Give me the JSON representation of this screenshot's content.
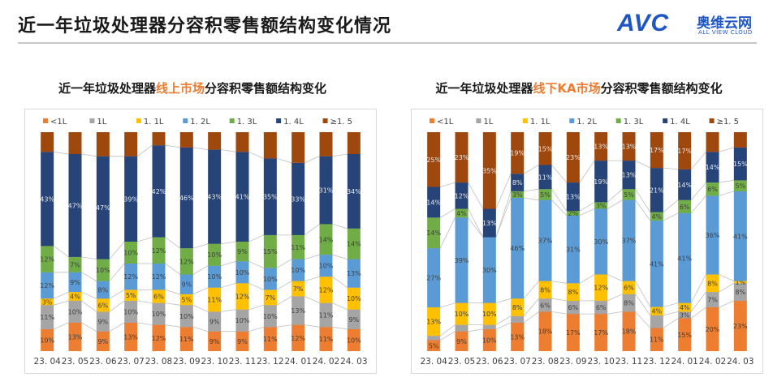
{
  "header": {
    "title": "近一年垃圾处理器分容积零售额结构变化情况",
    "logo_text": "AVC",
    "logo_cn": "奥维云网",
    "logo_en": "ALL VIEW CLOUD"
  },
  "colors": {
    "<1L": "#ed7d31",
    "1L": "#a5a5a5",
    "1.1L": "#ffc000",
    "1.2L": "#5b9bd5",
    "1.3L": "#70ad47",
    "1.4L": "#264478",
    ">=1.5": "#9e480e"
  },
  "chart_data": [
    {
      "type": "bar",
      "stacked": true,
      "title_parts": [
        "近一年垃圾处理器",
        "线上市场",
        "分容积零售额结构变化"
      ],
      "categories": [
        "23. 04",
        "23. 05",
        "23. 06",
        "23. 07",
        "23. 08",
        "23. 09",
        "23. 10",
        "23. 11",
        "23. 12",
        "24. 01",
        "24. 02",
        "24. 03"
      ],
      "legend_position": "top",
      "series": [
        {
          "name": "<1L",
          "values": [
            10,
            13,
            9,
            13,
            12,
            11,
            9,
            9,
            11,
            12,
            11,
            10
          ],
          "labels": [
            "10%",
            "13%",
            "9%",
            "13%",
            "12%",
            "11%",
            "9%",
            "9%",
            "11%",
            "12%",
            "11%",
            "10%"
          ]
        },
        {
          "name": "1L",
          "values": [
            11,
            10,
            9,
            10,
            10,
            10,
            9,
            10,
            10,
            13,
            11,
            9
          ],
          "labels": [
            "11%",
            "10%",
            "9%",
            "10%",
            "10%",
            "10%",
            "9%",
            "10%",
            "10%",
            "13%",
            "11%",
            "9%"
          ]
        },
        {
          "name": "1.1L",
          "values": [
            3,
            4,
            6,
            5,
            6,
            5,
            11,
            12,
            7,
            7,
            12,
            10
          ],
          "labels": [
            "3%",
            "4%",
            "6%",
            "5%",
            "6%",
            "5%",
            "11%",
            "12%",
            "7%",
            "7%",
            "12%",
            "10%"
          ]
        },
        {
          "name": "1.2L",
          "values": [
            12,
            9,
            8,
            12,
            12,
            9,
            10,
            10,
            10,
            10,
            10,
            13
          ],
          "labels": [
            "12%",
            "9%",
            "8%",
            "12%",
            "12%",
            "9%",
            "10%",
            "10%",
            "10%",
            "10%",
            "10%",
            "13%"
          ]
        },
        {
          "name": "1.3L",
          "values": [
            12,
            7,
            10,
            10,
            12,
            12,
            10,
            9,
            15,
            11,
            14,
            14
          ],
          "labels": [
            "12%",
            "7%",
            "10%",
            "10%",
            "12%",
            "12%",
            "10%",
            "9%",
            "15%",
            "11%",
            "14%",
            "14%"
          ]
        },
        {
          "name": "1.4L",
          "values": [
            43,
            47,
            47,
            39,
            42,
            46,
            43,
            41,
            35,
            33,
            31,
            34
          ],
          "labels": [
            "43%",
            "47%",
            "47%",
            "39%",
            "42%",
            "46%",
            "43%",
            "41%",
            "35%",
            "33%",
            "31%",
            "34%"
          ]
        },
        {
          "name": ">=1.5",
          "values": [
            9,
            10,
            11,
            11,
            6,
            7,
            8,
            9,
            12,
            14,
            11,
            10
          ],
          "labels": [
            "",
            "",
            "",
            "",
            "",
            "",
            "",
            "",
            "",
            "",
            "",
            ""
          ]
        }
      ],
      "legend_labels": [
        "<1L",
        "1L",
        "1. 1L",
        "1. 2L",
        "1. 3L",
        "1. 4L",
        "≥1. 5"
      ],
      "ylim": [
        0,
        100
      ]
    },
    {
      "type": "bar",
      "stacked": true,
      "title_parts": [
        "近一年垃圾处理器",
        "线下KA市场",
        "分容积零售额结构变化"
      ],
      "categories": [
        "23. 04",
        "23. 05",
        "23. 06",
        "23. 07",
        "23. 08",
        "23. 09",
        "23. 10",
        "23. 11",
        "23. 12",
        "24. 01",
        "24. 02",
        "24. 03"
      ],
      "legend_position": "top",
      "series": [
        {
          "name": "<1L",
          "values": [
            5,
            9,
            10,
            13,
            18,
            17,
            17,
            18,
            11,
            15,
            20,
            23
          ],
          "labels": [
            "5%",
            "9%",
            "10%",
            "13%",
            "18%",
            "17%",
            "17%",
            "18%",
            "11%",
            "15%",
            "20%",
            "23%"
          ]
        },
        {
          "name": "1L",
          "values": [
            2,
            3,
            2,
            3,
            6,
            6,
            6,
            8,
            6,
            3,
            7,
            8
          ],
          "labels": [
            "",
            "",
            "",
            "",
            "6%",
            "6%",
            "6%",
            "8%",
            "",
            "3%",
            "7%",
            "8%"
          ]
        },
        {
          "name": "1.1L",
          "values": [
            13,
            10,
            10,
            8,
            8,
            8,
            12,
            6,
            4,
            4,
            8,
            1
          ],
          "labels": [
            "13%",
            "10%",
            "10%",
            "8%",
            "8%",
            "8%",
            "12%",
            "6%",
            "4%",
            "4%",
            "8%",
            "1%"
          ]
        },
        {
          "name": "1.2L",
          "values": [
            27,
            39,
            30,
            46,
            37,
            31,
            30,
            37,
            41,
            41,
            36,
            41
          ],
          "labels": [
            "27%",
            "39%",
            "30%",
            "46%",
            "37%",
            "31%",
            "30%",
            "37%",
            "41%",
            "41%",
            "36%",
            "41%"
          ]
        },
        {
          "name": "1.3L",
          "values": [
            14,
            4,
            0,
            3,
            5,
            2,
            3,
            5,
            4,
            6,
            6,
            5
          ],
          "labels": [
            "14%",
            "4%",
            "",
            "3%",
            "5%",
            "2%",
            "3%",
            "5%",
            "4%",
            "6%",
            "6%",
            "5%"
          ]
        },
        {
          "name": "1.4L",
          "values": [
            14,
            12,
            13,
            8,
            11,
            13,
            19,
            13,
            21,
            14,
            14,
            15
          ],
          "labels": [
            "14%",
            "12%",
            "13%",
            "8%",
            "11%",
            "13%",
            "19%",
            "13%",
            "21%",
            "14%",
            "14%",
            "15%"
          ]
        },
        {
          "name": ">=1.5",
          "values": [
            25,
            23,
            35,
            19,
            15,
            23,
            13,
            13,
            17,
            17,
            9,
            7
          ],
          "labels": [
            "25%",
            "23%",
            "35%",
            "19%",
            "15%",
            "23%",
            "13%",
            "13%",
            "17%",
            "17%",
            "",
            ""
          ]
        }
      ],
      "legend_labels": [
        "<1L",
        "1L",
        "1. 1L",
        "1. 2L",
        "1. 3L",
        "1. 4L",
        "≥1. 5"
      ],
      "ylim": [
        0,
        100
      ]
    }
  ]
}
